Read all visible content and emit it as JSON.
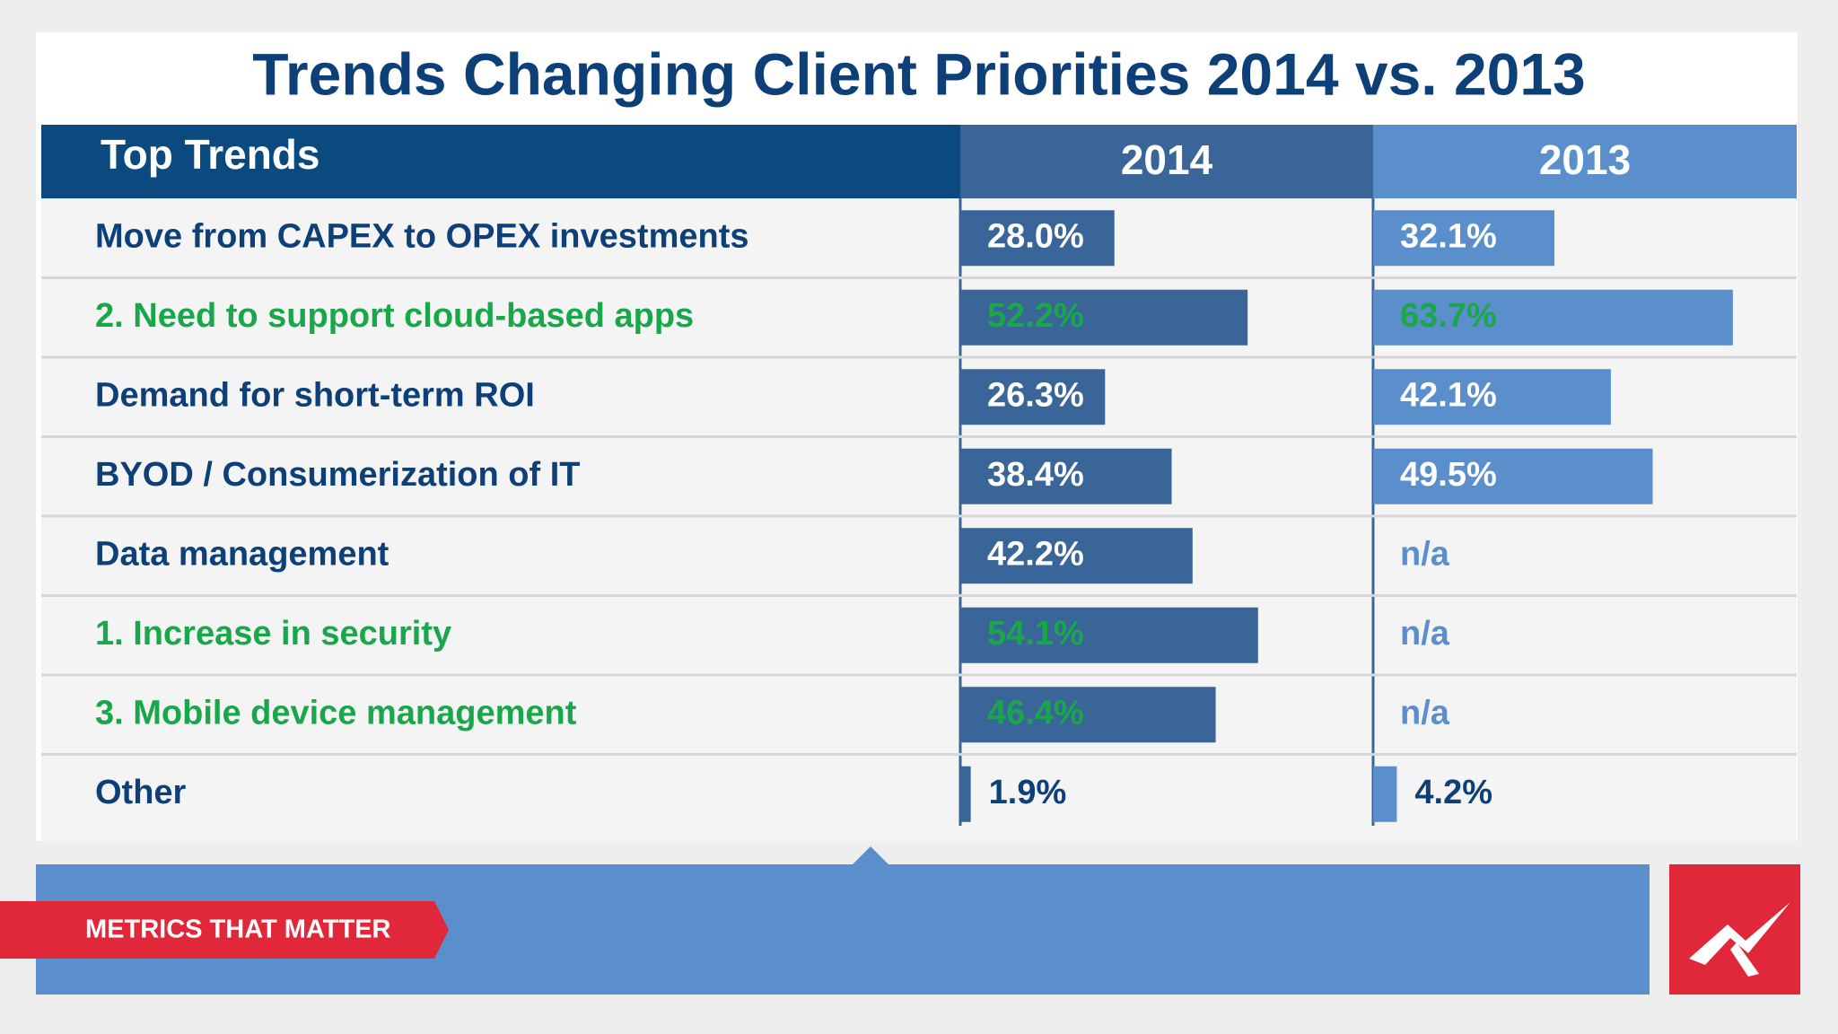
{
  "chart_data": {
    "type": "table-bar",
    "title": "Trends Changing Client Priorities 2014 vs. 2013",
    "category_label": "Top Trends",
    "categories": [
      "Move from CAPEX to OPEX investments",
      "2. Need to support cloud-based apps",
      "Demand for short-term ROI",
      "BYOD / Consumerization of IT",
      "Data management",
      "1. Increase in security",
      "3. Mobile device management",
      "Other"
    ],
    "category_colors": [
      "#0d3f78",
      "#1aa64a",
      "#0d3f78",
      "#0d3f78",
      "#0d3f78",
      "#1aa64a",
      "#1aa64a",
      "#0d3f78"
    ],
    "xlim": [
      0,
      75
    ],
    "series": [
      {
        "name": "2014",
        "color": "#3a6598",
        "values": [
          28.0,
          52.2,
          26.3,
          38.4,
          42.2,
          54.1,
          46.4,
          1.9
        ],
        "value_labels": [
          "28.0%",
          "52.2%",
          "26.3%",
          "38.4%",
          "42.2%",
          "54.1%",
          "46.4%",
          "1.9%"
        ]
      },
      {
        "name": "2013",
        "color": "#5b8fcc",
        "values": [
          32.1,
          63.7,
          42.1,
          49.5,
          null,
          null,
          null,
          4.2
        ],
        "value_labels": [
          "32.1%",
          "63.7%",
          "42.1%",
          "49.5%",
          "n/a",
          "n/a",
          "n/a",
          "4.2%"
        ]
      }
    ]
  },
  "footer": {
    "tag": "METRICS THAT MATTER"
  }
}
